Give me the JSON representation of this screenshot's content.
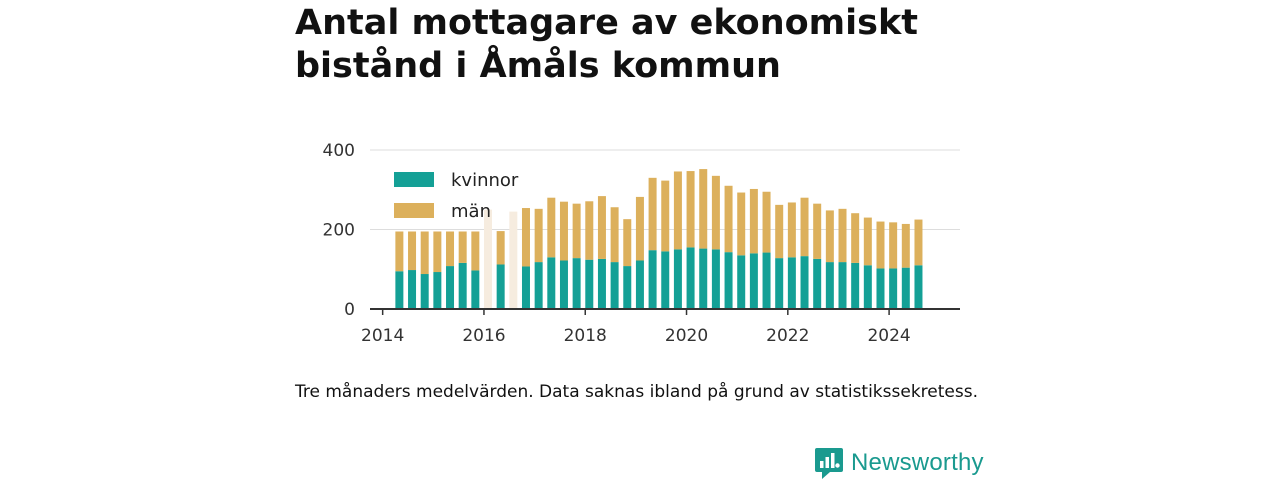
{
  "title_line1": "Antal mottagare av ekonomiskt",
  "title_line2": "bistånd i Åmåls kommun",
  "note": "Tre månaders medelvärden. Data saknas ibland på grund av statistikssekretess.",
  "brand": "Newsworthy",
  "colors": {
    "kvinnor": "#14a096",
    "man": "#dcb05c",
    "man_faded": "#f6ecdf",
    "grid": "#dddddd",
    "axis": "#333333"
  },
  "chart_data": {
    "type": "bar",
    "stacked": true,
    "legend_position": "top-left",
    "grid": true,
    "ylim": [
      0,
      400
    ],
    "yticks": [
      "0",
      "200",
      "400"
    ],
    "xlim": [
      2013.75,
      2025.4
    ],
    "xticks": [
      "2014",
      "2016",
      "2018",
      "2020",
      "2022",
      "2024"
    ],
    "x": [
      2014.33,
      2014.58,
      2014.83,
      2015.08,
      2015.33,
      2015.58,
      2015.83,
      2016.08,
      2016.33,
      2016.58,
      2016.83,
      2017.08,
      2017.33,
      2017.58,
      2017.83,
      2018.08,
      2018.33,
      2018.58,
      2018.83,
      2019.08,
      2019.33,
      2019.58,
      2019.83,
      2020.08,
      2020.33,
      2020.58,
      2020.83,
      2021.08,
      2021.33,
      2021.58,
      2021.83,
      2022.08,
      2022.33,
      2022.58,
      2022.83,
      2023.08,
      2023.33,
      2023.58,
      2023.83,
      2024.08,
      2024.33,
      2024.58
    ],
    "faded": [
      false,
      false,
      false,
      false,
      false,
      false,
      false,
      true,
      false,
      true,
      false,
      false,
      false,
      false,
      false,
      false,
      false,
      false,
      false,
      false,
      false,
      false,
      false,
      false,
      false,
      false,
      false,
      false,
      false,
      false,
      false,
      false,
      false,
      false,
      false,
      false,
      false,
      false,
      false,
      false,
      false,
      false
    ],
    "series": [
      {
        "name": "kvinnor",
        "values": [
          95,
          98,
          88,
          93,
          108,
          116,
          97,
          null,
          112,
          null,
          107,
          118,
          130,
          122,
          128,
          124,
          126,
          118,
          108,
          122,
          148,
          145,
          150,
          155,
          152,
          150,
          143,
          135,
          140,
          142,
          128,
          130,
          133,
          126,
          118,
          118,
          116,
          110,
          102,
          102,
          104,
          110
        ]
      },
      {
        "name": "män",
        "values": [
          100,
          97,
          107,
          102,
          87,
          79,
          98,
          250,
          84,
          245,
          147,
          134,
          150,
          148,
          137,
          147,
          158,
          138,
          118,
          160,
          182,
          178,
          196,
          192,
          200,
          185,
          167,
          158,
          162,
          153,
          134,
          138,
          147,
          139,
          130,
          134,
          125,
          120,
          118,
          116,
          110,
          115
        ]
      }
    ]
  }
}
